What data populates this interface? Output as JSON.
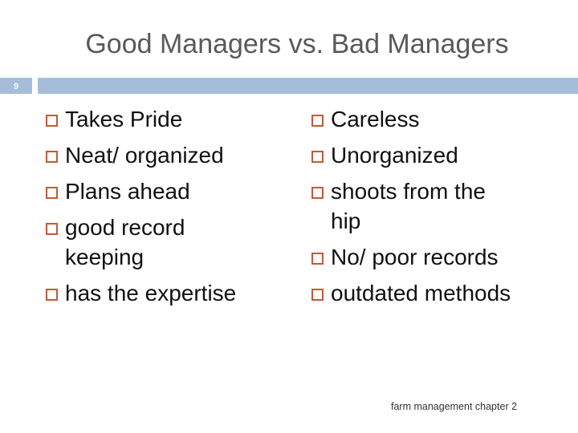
{
  "slide": {
    "title": "Good Managers vs. Bad Managers",
    "number": "9",
    "footer": "farm management chapter 2",
    "accent_color": "#a5bdd8",
    "bullet_color": "#c15a38"
  },
  "left_column": {
    "items": [
      "Takes Pride",
      "Neat/ organized",
      "Plans ahead",
      "good record keeping",
      "has the expertise"
    ]
  },
  "right_column": {
    "items": [
      "Careless",
      "Unorganized",
      "shoots from the hip",
      "No/ poor records",
      "outdated methods"
    ]
  }
}
